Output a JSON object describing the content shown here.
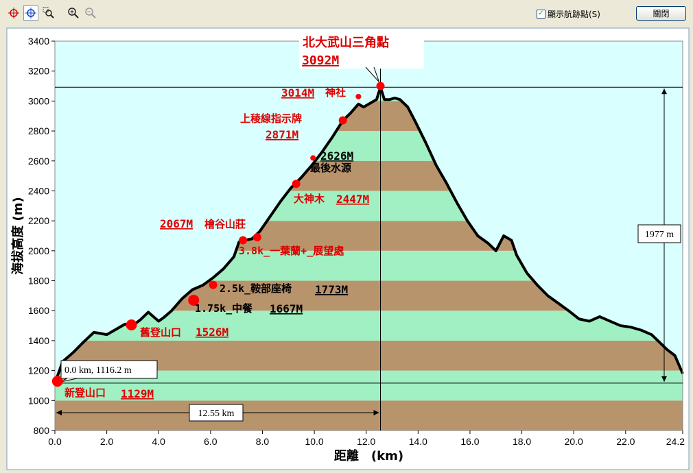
{
  "toolbar": {
    "tools": [
      {
        "name": "crosshair-red-icon"
      },
      {
        "name": "crosshair-blue-icon"
      },
      {
        "name": "zoom-region-icon"
      },
      {
        "name": "zoom-in-icon"
      },
      {
        "name": "zoom-out-icon"
      }
    ],
    "waypoint_toggle_label": "顯示航跡點(S)",
    "waypoint_toggle_checked": true,
    "close_label": "關閉"
  },
  "chart_data": {
    "type": "area",
    "xlabel": "距離　(km)",
    "ylabel": "海拔高度 (m)",
    "xlim": [
      0,
      24.2
    ],
    "ylim": [
      800,
      3400
    ],
    "x_ticks": [
      "0.0",
      "2.0",
      "4.0",
      "6.0",
      "8.0",
      "10.0",
      "12.0",
      "14.0",
      "16.0",
      "18.0",
      "20.0",
      "22.0",
      "24.2"
    ],
    "y_ticks": [
      "800",
      "1000",
      "1200",
      "1400",
      "1600",
      "1800",
      "2000",
      "2200",
      "2400",
      "2600",
      "2800",
      "3000",
      "3200",
      "3400"
    ],
    "colors": {
      "plot_bg": "#d9ffff",
      "band_brown": "#b8946c",
      "band_green": "#a1f0c3",
      "line": "#000000",
      "marker": "#ff0000",
      "label_red": "#dd0000"
    },
    "profile": {
      "x": [
        0,
        0.3,
        0.7,
        1.1,
        1.5,
        1.7,
        2.0,
        2.3,
        2.7,
        3.0,
        3.3,
        3.6,
        3.8,
        4.0,
        4.2,
        4.5,
        4.9,
        5.3,
        5.7,
        6.1,
        6.5,
        6.9,
        7.1,
        7.3,
        7.6,
        7.9,
        8.3,
        8.7,
        9.1,
        9.5,
        9.9,
        10.3,
        10.7,
        11.1,
        11.4,
        11.7,
        11.9,
        12.2,
        12.4,
        12.55,
        12.7,
        12.9,
        13.1,
        13.3,
        13.6,
        13.9,
        14.3,
        14.7,
        15.1,
        15.5,
        15.9,
        16.3,
        16.7,
        17.0,
        17.3,
        17.6,
        17.8,
        18.2,
        18.6,
        19.0,
        19.4,
        19.8,
        20.2,
        20.6,
        21.0,
        21.4,
        21.8,
        22.2,
        22.6,
        23.0,
        23.3,
        23.6,
        23.9,
        24.2
      ],
      "y": [
        1116,
        1260,
        1320,
        1390,
        1455,
        1450,
        1440,
        1470,
        1510,
        1500,
        1540,
        1590,
        1560,
        1530,
        1555,
        1600,
        1680,
        1740,
        1770,
        1820,
        1880,
        1960,
        2060,
        2070,
        2080,
        2130,
        2230,
        2330,
        2420,
        2490,
        2570,
        2660,
        2760,
        2870,
        2920,
        2980,
        2960,
        2990,
        3010,
        3092,
        3010,
        3010,
        3020,
        3010,
        2960,
        2860,
        2720,
        2570,
        2450,
        2320,
        2200,
        2100,
        2050,
        2000,
        2100,
        2070,
        1970,
        1850,
        1770,
        1700,
        1650,
        1600,
        1545,
        1530,
        1560,
        1530,
        1500,
        1490,
        1470,
        1440,
        1390,
        1340,
        1300,
        1180
      ]
    },
    "waypoints": [
      {
        "x": 0.1,
        "y": 1129,
        "size": "large",
        "label": "新登山口",
        "value": "1129M"
      },
      {
        "x": 2.95,
        "y": 1505,
        "size": "large",
        "label": "舊登山口",
        "value": "1526M"
      },
      {
        "x": 5.35,
        "y": 1670,
        "size": "large",
        "label": "1.75k_中餐",
        "value": "1667M"
      },
      {
        "x": 6.1,
        "y": 1772,
        "size": "medium",
        "label": "2.5k_鞍部座椅",
        "value": "1773M"
      },
      {
        "x": 7.25,
        "y": 2070,
        "size": "medium",
        "label": "檜谷山莊",
        "value": "2067M"
      },
      {
        "x": 7.8,
        "y": 2090,
        "size": "medium",
        "label": "3.8k_一葉蘭+_展望處",
        "value": ""
      },
      {
        "x": 9.3,
        "y": 2447,
        "size": "medium",
        "label": "大神木",
        "value": "2447M"
      },
      {
        "x": 9.95,
        "y": 2620,
        "size": "small",
        "label": "最後水源",
        "value": "2626M"
      },
      {
        "x": 11.1,
        "y": 2871,
        "size": "medium",
        "label": "上稜線指示牌",
        "value": "2871M"
      },
      {
        "x": 11.7,
        "y": 3030,
        "size": "small",
        "label": "神社",
        "value": "3014M"
      },
      {
        "x": 12.55,
        "y": 3100,
        "size": "medium",
        "label": "北大武山三角點",
        "value": "3092M"
      }
    ],
    "cursor": {
      "x": 12.55,
      "y_peak": 3092,
      "y_start": 1116.2,
      "readout": "0.0 km, 1116.2 m",
      "distance_label": "12.55 km",
      "height_diff_label": "1977 m"
    }
  }
}
